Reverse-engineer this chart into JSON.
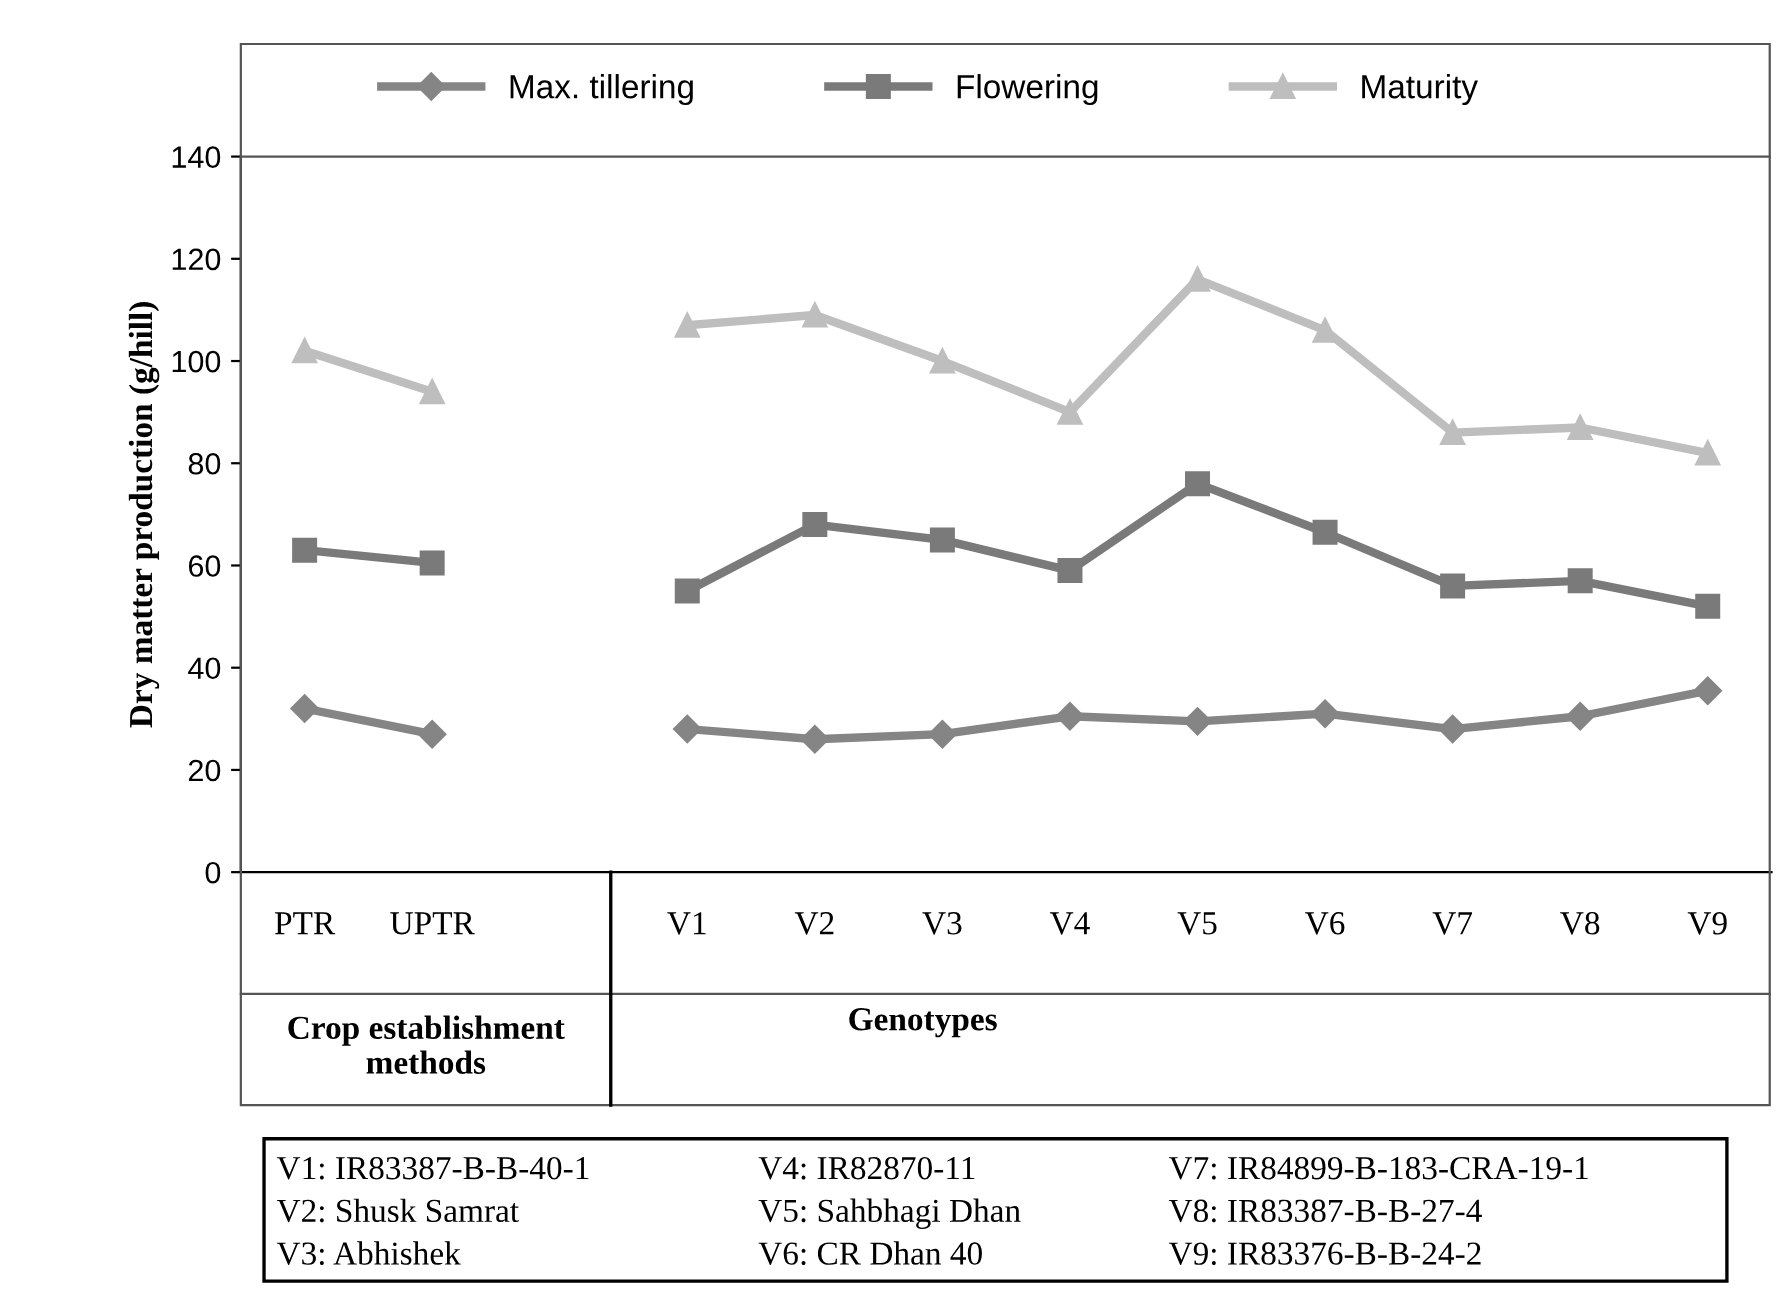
{
  "chart_data": {
    "type": "line",
    "categories": [
      "PTR",
      "UPTR",
      null,
      "V1",
      "V2",
      "V3",
      "V4",
      "V5",
      "V6",
      "V7",
      "V8",
      "V9"
    ],
    "series": [
      {
        "name": "Max. tillering",
        "color": "#858585",
        "marker": "diamond",
        "values": [
          32,
          27,
          null,
          28,
          26,
          27,
          30.5,
          29.5,
          31,
          28,
          30.5,
          35.5
        ]
      },
      {
        "name": "Flowering",
        "color": "#7a7a7a",
        "marker": "square",
        "values": [
          63,
          60.5,
          null,
          55,
          68,
          65,
          59,
          76,
          66.5,
          56,
          57,
          52
        ]
      },
      {
        "name": "Maturity",
        "color": "#bebebe",
        "marker": "triangle",
        "values": [
          102,
          94,
          null,
          107,
          109,
          100,
          90,
          116,
          106,
          86,
          87,
          82
        ]
      }
    ],
    "ylabel": "Dry matter production (g/hill)",
    "ylim": [
      0,
      140
    ],
    "yticks": [
      0,
      20,
      40,
      60,
      80,
      100,
      120,
      140
    ],
    "grid": false,
    "legend": "top",
    "annotations": [
      "Crop establishment methods",
      "Genotypes",
      "V1: IR83387-B-B-40-1",
      "V2: Shusk Samrat",
      "V3: Abhishek",
      "V4: IR82870-11",
      "V5: Sahbhagi Dhan",
      "V6: CR Dhan 40",
      "V7: IR84899-B-183-CRA-19-1",
      "V8: IR83387-B-B-27-4",
      "V9: IR83376-B-B-24-2"
    ]
  }
}
